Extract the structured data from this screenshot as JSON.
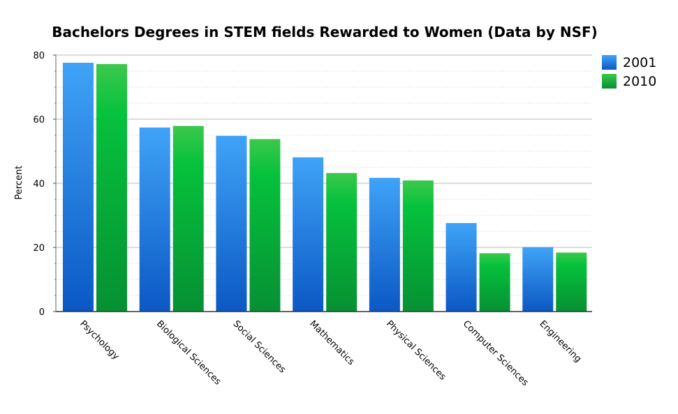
{
  "chart_data": {
    "type": "bar",
    "title": "Bachelors Degrees in STEM fields Rewarded to Women (Data by NSF)",
    "xlabel": "",
    "ylabel": "Percent",
    "ylim": [
      0,
      80
    ],
    "yticks": [
      "0",
      "20",
      "40",
      "60",
      "80"
    ],
    "grid": true,
    "legend_position": "right",
    "categories": [
      "Psychology",
      "Biological Sciences",
      "Social Sciences",
      "Mathematics",
      "Physical Sciences",
      "Computer Sciences",
      "Engineering"
    ],
    "series": [
      {
        "name": "2001",
        "color": "#1a7fe0",
        "values": [
          77.6,
          57.4,
          54.8,
          48.1,
          41.7,
          27.6,
          20.1
        ]
      },
      {
        "name": "2010",
        "color": "#10b545",
        "values": [
          77.2,
          57.9,
          53.8,
          43.2,
          40.9,
          18.2,
          18.4
        ]
      }
    ]
  }
}
